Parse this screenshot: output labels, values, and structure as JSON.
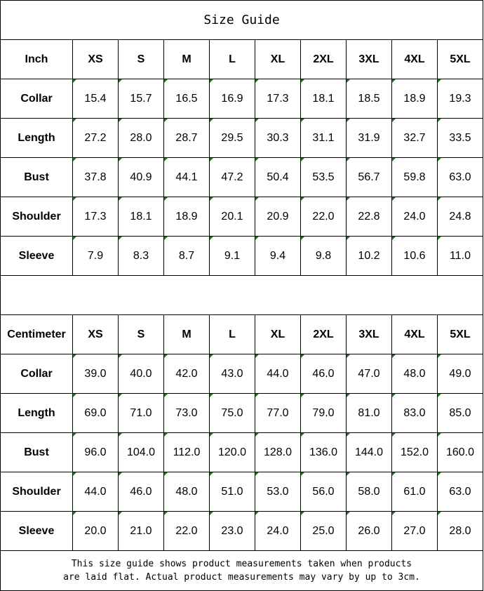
{
  "title": "Size Guide",
  "sizes": [
    "XS",
    "S",
    "M",
    "L",
    "XL",
    "2XL",
    "3XL",
    "4XL",
    "5XL"
  ],
  "tables": [
    {
      "unit": "Inch",
      "rows": [
        {
          "label": "Collar",
          "values": [
            "15.4",
            "15.7",
            "16.5",
            "16.9",
            "17.3",
            "18.1",
            "18.5",
            "18.9",
            "19.3"
          ]
        },
        {
          "label": "Length",
          "values": [
            "27.2",
            "28.0",
            "28.7",
            "29.5",
            "30.3",
            "31.1",
            "31.9",
            "32.7",
            "33.5"
          ]
        },
        {
          "label": "Bust",
          "values": [
            "37.8",
            "40.9",
            "44.1",
            "47.2",
            "50.4",
            "53.5",
            "56.7",
            "59.8",
            "63.0"
          ]
        },
        {
          "label": "Shoulder",
          "values": [
            "17.3",
            "18.1",
            "18.9",
            "20.1",
            "20.9",
            "22.0",
            "22.8",
            "24.0",
            "24.8"
          ]
        },
        {
          "label": "Sleeve",
          "values": [
            "7.9",
            "8.3",
            "8.7",
            "9.1",
            "9.4",
            "9.8",
            "10.2",
            "10.6",
            "11.0"
          ]
        }
      ]
    },
    {
      "unit": "Centimeter",
      "rows": [
        {
          "label": "Collar",
          "values": [
            "39.0",
            "40.0",
            "42.0",
            "43.0",
            "44.0",
            "46.0",
            "47.0",
            "48.0",
            "49.0"
          ]
        },
        {
          "label": "Length",
          "values": [
            "69.0",
            "71.0",
            "73.0",
            "75.0",
            "77.0",
            "79.0",
            "81.0",
            "83.0",
            "85.0"
          ]
        },
        {
          "label": "Bust",
          "values": [
            "96.0",
            "104.0",
            "112.0",
            "120.0",
            "128.0",
            "136.0",
            "144.0",
            "152.0",
            "160.0"
          ]
        },
        {
          "label": "Shoulder",
          "values": [
            "44.0",
            "46.0",
            "48.0",
            "51.0",
            "53.0",
            "56.0",
            "58.0",
            "61.0",
            "63.0"
          ]
        },
        {
          "label": "Sleeve",
          "values": [
            "20.0",
            "21.0",
            "22.0",
            "23.0",
            "24.0",
            "25.0",
            "26.0",
            "27.0",
            "28.0"
          ]
        }
      ]
    }
  ],
  "footer": {
    "line1": "This size guide shows product measurements taken when products",
    "line2": "are laid flat. Actual product measurements may vary by up to 3cm."
  },
  "colors": {
    "text_marker": "#1a7a1a",
    "border": "#000000"
  }
}
